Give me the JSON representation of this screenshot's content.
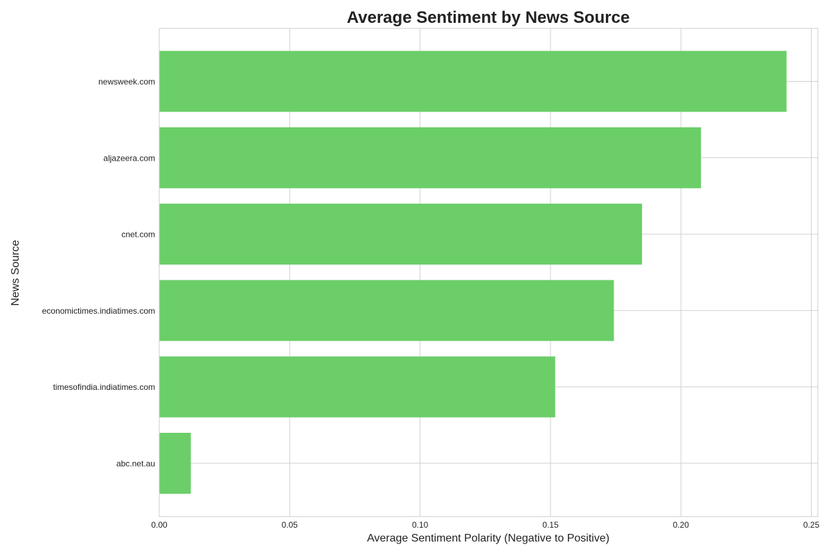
{
  "chart_data": {
    "type": "bar",
    "orientation": "horizontal",
    "title": "Average Sentiment by News Source",
    "xlabel": "Average Sentiment Polarity (Negative to Positive)",
    "ylabel": "News Source",
    "categories": [
      "newsweek.com",
      "aljazeera.com",
      "cnet.com",
      "economictimes.indiatimes.com",
      "timesofindia.indiatimes.com",
      "abc.net.au"
    ],
    "values": [
      0.2405,
      0.2077,
      0.1851,
      0.1743,
      0.1518,
      0.0121
    ],
    "xlim": [
      0,
      0.2525
    ],
    "xticks": [
      0.0,
      0.05,
      0.1,
      0.15,
      0.2,
      0.25
    ],
    "xtick_labels": [
      "0.00",
      "0.05",
      "0.10",
      "0.15",
      "0.20",
      "0.25"
    ],
    "grid": true,
    "bar_color": "#6bce68",
    "grid_color": "#d0d0d0",
    "text_color": "#222222"
  }
}
